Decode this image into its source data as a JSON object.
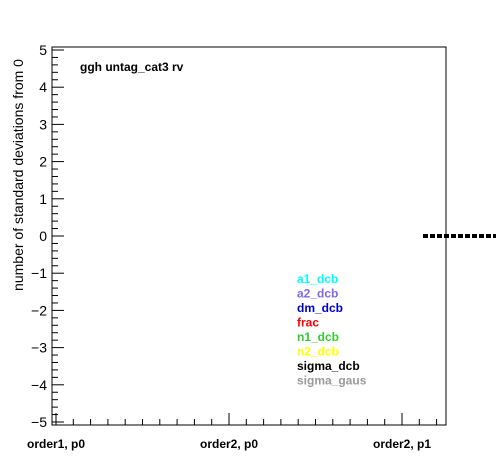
{
  "chart_data": {
    "type": "scatter",
    "title": "ggh untag_cat3 rv",
    "ylabel": "number of standard deviations from 0",
    "xlabel": "",
    "ylim": [
      -5,
      5
    ],
    "y_ticks": [
      "5",
      "4",
      "3",
      "2",
      "1",
      "0",
      "−1",
      "−2",
      "−3",
      "−4",
      "−5"
    ],
    "categories": [
      "order1, p0",
      "order2, p0",
      "order2, p1"
    ],
    "grid": false,
    "legend_placement": "lower-center",
    "dashed_segment": {
      "start_category": "order2, p1",
      "y": 0,
      "color": "#000000"
    },
    "legend": [
      {
        "name": "a1_dcb",
        "color": "#00ffff"
      },
      {
        "name": "a2_dcb",
        "color": "#7b68ee"
      },
      {
        "name": "dm_dcb",
        "color": "#0000cc"
      },
      {
        "name": "frac",
        "color": "#ff0000"
      },
      {
        "name": "n1_dcb",
        "color": "#33cc33"
      },
      {
        "name": "n2_dcb",
        "color": "#ffff00"
      },
      {
        "name": "sigma_dcb",
        "color": "#000000"
      },
      {
        "name": "sigma_gaus",
        "color": "#999999"
      }
    ]
  }
}
